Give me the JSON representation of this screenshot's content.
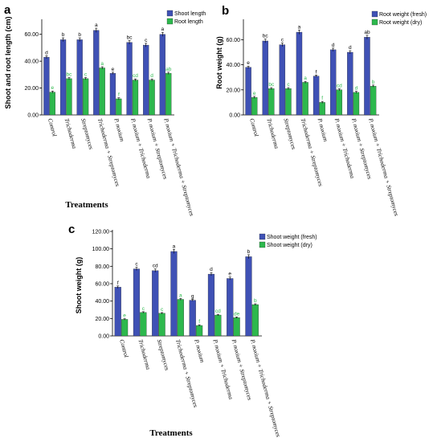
{
  "chart_data": [
    {
      "type": "bar",
      "panel_label": "a",
      "ylabel": "Shoot and root length (cm)",
      "xlabel": "Treatments",
      "ylim": [
        0,
        70
      ],
      "yticks": [
        "0.00",
        "20.00",
        "40.00",
        "60.00"
      ],
      "grid": false,
      "legend_position": "top-right",
      "categories": [
        "Control",
        "Trichoderma",
        "Streptomyces",
        "Trichoderma + Streptomyces",
        "P. noxium",
        "P. noxium + Trichoderma",
        "P. noxium + Streptomyces",
        "P. noxium + Trichoderma + Streptomyces"
      ],
      "series": [
        {
          "name": "Shoot length",
          "color": "#3f51b5",
          "values": [
            43,
            56,
            56,
            63,
            31,
            54,
            52,
            60
          ],
          "letters": [
            "d",
            "b",
            "b",
            "a",
            "e",
            "bc",
            "c",
            "a"
          ],
          "letter_color": "#000000"
        },
        {
          "name": "Root length",
          "color": "#2db84d",
          "values": [
            17,
            27,
            27,
            35,
            12,
            26,
            26,
            31
          ],
          "letters": [
            "e",
            "bc",
            "c",
            "a",
            "f",
            "cd",
            "d",
            "ab"
          ],
          "letter_color": "#2db84d"
        }
      ]
    },
    {
      "type": "bar",
      "panel_label": "b",
      "ylabel": "Root weight (g)",
      "xlabel": "",
      "ylim": [
        0,
        75
      ],
      "yticks": [
        "0.00",
        "20.00",
        "40.00",
        "60.00"
      ],
      "grid": false,
      "legend_position": "top-right",
      "categories": [
        "Control",
        "Trichoderma",
        "Streptomyces",
        "Trichoderma + Streptomyces",
        "P. noxium",
        "P. noxium + Trichoderma",
        "P. noxium + Streptomyces",
        "P. noxium + Trichoderma + Streptomyces"
      ],
      "series": [
        {
          "name": "Root weight (fresh)",
          "color": "#3f51b5",
          "values": [
            38,
            59,
            56,
            66,
            31,
            52,
            50,
            62
          ],
          "letters": [
            "e",
            "bc",
            "c",
            "a",
            "f",
            "d",
            "d",
            "ab"
          ],
          "letter_color": "#000000"
        },
        {
          "name": "Root weight (dry)",
          "color": "#2db84d",
          "values": [
            14,
            21,
            21,
            26,
            10,
            20,
            18,
            23
          ],
          "letters": [
            "e",
            "bc",
            "c",
            "a",
            "f",
            "cd",
            "d",
            "b"
          ],
          "letter_color": "#2db84d"
        }
      ]
    },
    {
      "type": "bar",
      "panel_label": "c",
      "ylabel": "Shoot weight (g)",
      "xlabel": "Treatments",
      "ylim": [
        0,
        120
      ],
      "yticks": [
        "0.00",
        "20.00",
        "40.00",
        "60.00",
        "80.00",
        "100.00",
        "120.00"
      ],
      "grid": false,
      "legend_position": "top-right",
      "categories": [
        "Control",
        "Trichoderma",
        "Streptomyces",
        "Trichoderma + Streptomyces",
        "P. noxium",
        "P. noxium + Trichoderma",
        "P. noxium + Streptomyces",
        "P. noxium + Trichoderma + Streptomyces"
      ],
      "series": [
        {
          "name": "Shoot weight (fresh)",
          "color": "#3f51b5",
          "values": [
            56,
            77,
            75,
            97,
            41,
            71,
            66,
            91
          ],
          "letters": [
            "f",
            "c",
            "cd",
            "a",
            "g",
            "d",
            "e",
            "b"
          ],
          "letter_color": "#000000"
        },
        {
          "name": "Shoot weight (dry)",
          "color": "#2db84d",
          "values": [
            19,
            27,
            26,
            42,
            12,
            24,
            21,
            36
          ],
          "letters": [
            "e",
            "c",
            "c",
            "a",
            "f",
            "cd",
            "de",
            "b"
          ],
          "letter_color": "#2db84d"
        }
      ]
    }
  ]
}
